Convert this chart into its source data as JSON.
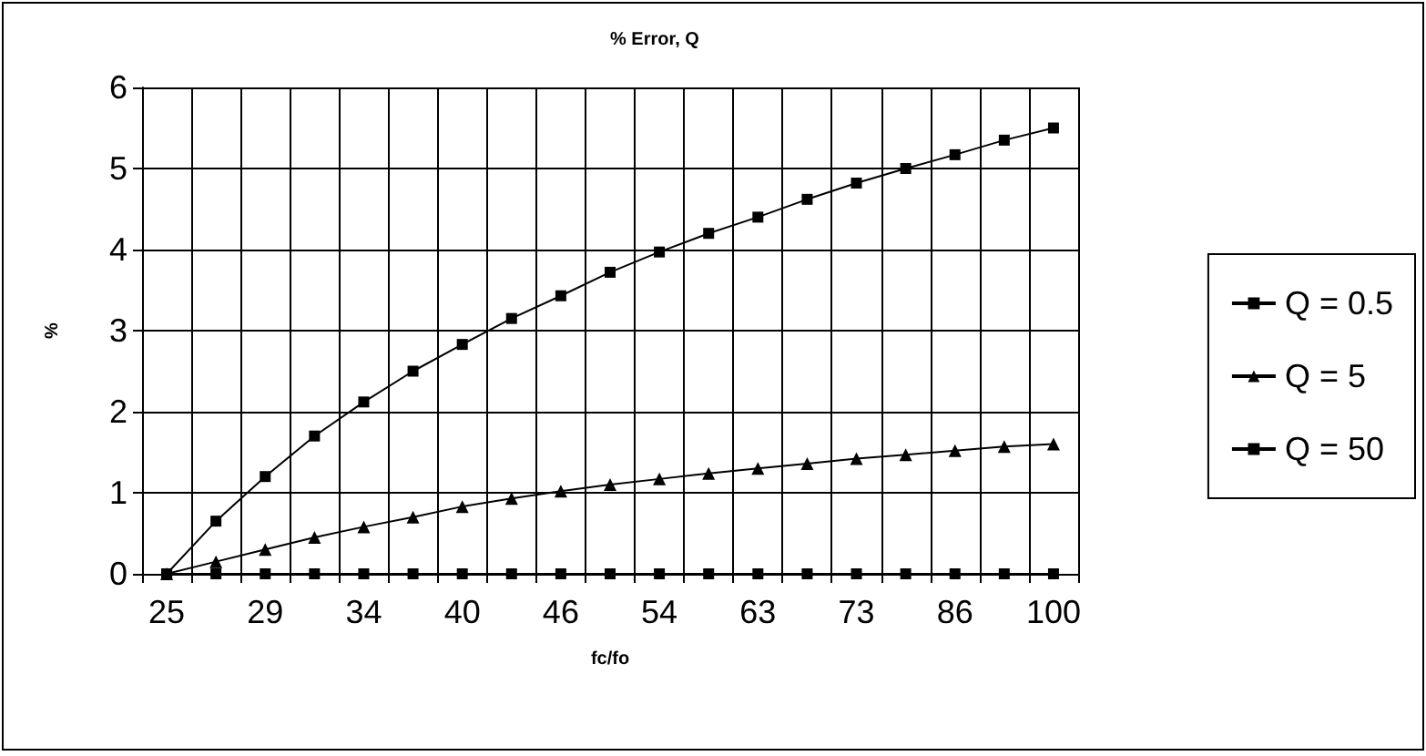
{
  "chart_data": {
    "type": "line",
    "title": "% Error, Q",
    "xlabel": "fc/fo",
    "ylabel": "%",
    "categories": [
      "25",
      null,
      "29",
      null,
      "34",
      null,
      "40",
      null,
      "46",
      null,
      "54",
      null,
      "63",
      null,
      "73",
      null,
      "86",
      null,
      "100"
    ],
    "series": [
      {
        "name": "Q = 0.5",
        "color": "#000000",
        "marker": "square",
        "values": [
          0,
          0.65,
          1.2,
          1.7,
          2.12,
          2.5,
          2.83,
          3.15,
          3.43,
          3.72,
          3.97,
          4.2,
          4.4,
          4.62,
          4.82,
          5.0,
          5.17,
          5.35,
          5.5
        ]
      },
      {
        "name": "Q = 5",
        "color": "#000000",
        "marker": "triangle",
        "values": [
          0,
          0.15,
          0.3,
          0.45,
          0.58,
          0.7,
          0.83,
          0.93,
          1.02,
          1.1,
          1.17,
          1.24,
          1.3,
          1.36,
          1.42,
          1.47,
          1.52,
          1.57,
          1.6
        ]
      },
      {
        "name": "Q = 50",
        "color": "#000000",
        "marker": "square",
        "values": [
          0,
          0,
          0,
          0,
          0,
          0,
          0,
          0,
          0,
          0,
          0,
          0,
          0,
          0,
          0,
          0,
          0,
          0,
          0
        ]
      }
    ],
    "ylim": [
      0,
      6
    ],
    "yticks": [
      0,
      1,
      2,
      3,
      4,
      5,
      6
    ],
    "grid": true,
    "legend": "right",
    "line_style": "solid"
  }
}
